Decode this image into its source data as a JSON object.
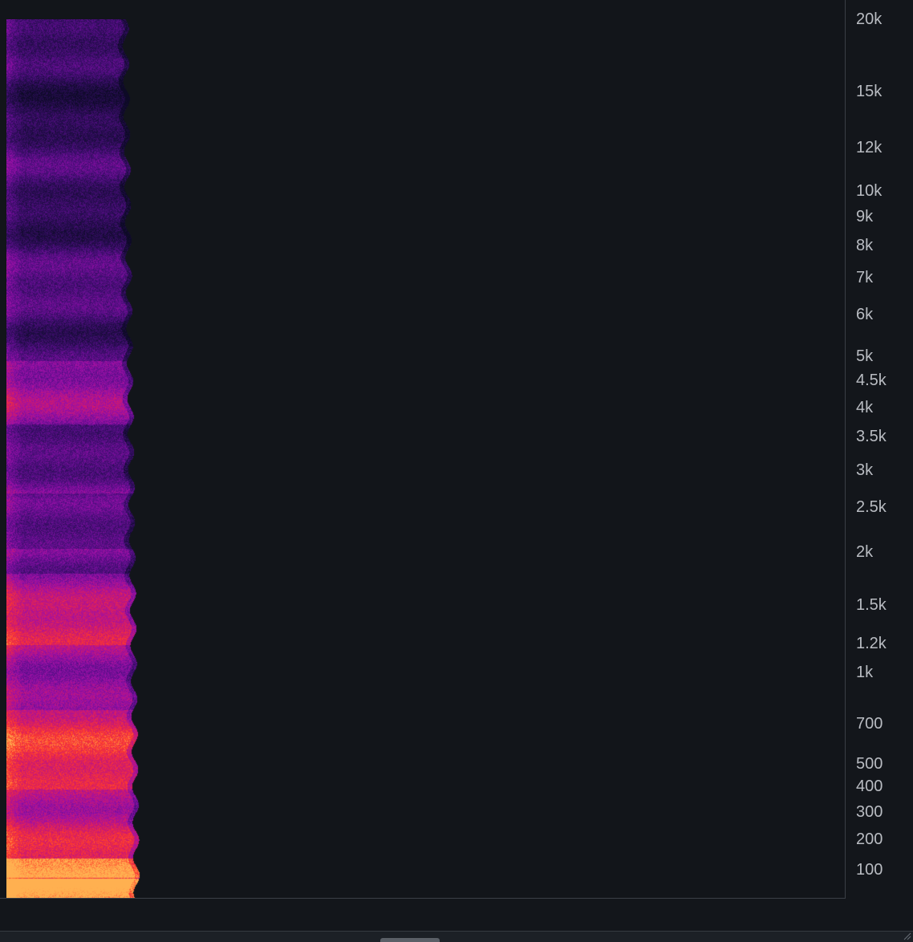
{
  "spectrogram": {
    "colormap": [
      "#0d0a26",
      "#2a0d55",
      "#5a0e8a",
      "#9a10a8",
      "#d21a6a",
      "#ff3b2a",
      "#ffb050"
    ],
    "background_color": "#12151a"
  },
  "axis": {
    "ticks": [
      {
        "label": "20k",
        "value": 20000
      },
      {
        "label": "15k",
        "value": 15000
      },
      {
        "label": "12k",
        "value": 12000
      },
      {
        "label": "10k",
        "value": 10000
      },
      {
        "label": "9k",
        "value": 9000
      },
      {
        "label": "8k",
        "value": 8000
      },
      {
        "label": "7k",
        "value": 7000
      },
      {
        "label": "6k",
        "value": 6000
      },
      {
        "label": "5k",
        "value": 5000
      },
      {
        "label": "4.5k",
        "value": 4500
      },
      {
        "label": "4k",
        "value": 4000
      },
      {
        "label": "3.5k",
        "value": 3500
      },
      {
        "label": "3k",
        "value": 3000
      },
      {
        "label": "2.5k",
        "value": 2500
      },
      {
        "label": "2k",
        "value": 2000
      },
      {
        "label": "1.5k",
        "value": 1500
      },
      {
        "label": "1.2k",
        "value": 1200
      },
      {
        "label": "1k",
        "value": 1000
      },
      {
        "label": "700",
        "value": 700
      },
      {
        "label": "500",
        "value": 500
      },
      {
        "label": "400",
        "value": 400
      },
      {
        "label": "300",
        "value": 300
      },
      {
        "label": "200",
        "value": 200
      },
      {
        "label": "100",
        "value": 100
      }
    ],
    "text_color": "#b9bcc2"
  }
}
